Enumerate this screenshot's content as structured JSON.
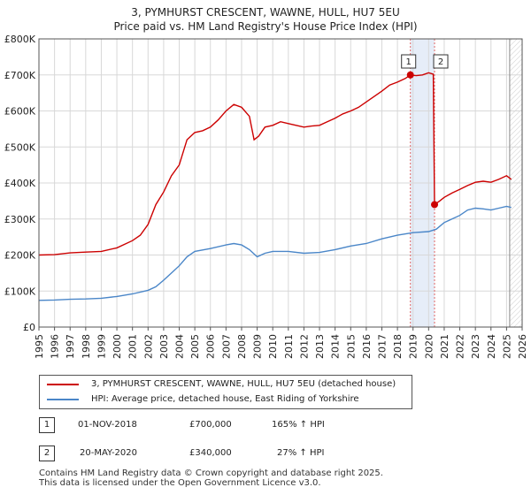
{
  "chart_data": {
    "type": "line",
    "title": "3, PYMHURST CRESCENT, WAWNE, HULL, HU7 5EU",
    "subtitle": "Price paid vs. HM Land Registry's House Price Index (HPI)",
    "xlabel": "",
    "ylabel": "",
    "xlim": [
      1995,
      2026
    ],
    "ylim": [
      0,
      800000
    ],
    "y_ticks": [
      {
        "value": 0,
        "label": "£0"
      },
      {
        "value": 100000,
        "label": "£100K"
      },
      {
        "value": 200000,
        "label": "£200K"
      },
      {
        "value": 300000,
        "label": "£300K"
      },
      {
        "value": 400000,
        "label": "£400K"
      },
      {
        "value": 500000,
        "label": "£500K"
      },
      {
        "value": 600000,
        "label": "£600K"
      },
      {
        "value": 700000,
        "label": "£700K"
      },
      {
        "value": 800000,
        "label": "£800K"
      }
    ],
    "x_ticks": [
      "1995",
      "1996",
      "1997",
      "1998",
      "1999",
      "2000",
      "2001",
      "2002",
      "2003",
      "2004",
      "2005",
      "2006",
      "2007",
      "2008",
      "2009",
      "2010",
      "2011",
      "2012",
      "2013",
      "2014",
      "2015",
      "2016",
      "2017",
      "2018",
      "2019",
      "2020",
      "2021",
      "2022",
      "2023",
      "2024",
      "2025",
      "2026"
    ],
    "grid": true,
    "highlight_band": [
      2018.83,
      2020.38
    ],
    "projection_start": 2025.2,
    "series": [
      {
        "name": "3, PYMHURST CRESCENT, WAWNE, HULL, HU7 5EU (detached house)",
        "color": "#cc0000",
        "x": [
          1995,
          1996,
          1997,
          1998,
          1999,
          2000,
          2001,
          2001.5,
          2002,
          2002.5,
          2003,
          2003.5,
          2004,
          2004.5,
          2005,
          2005.5,
          2006,
          2006.5,
          2007,
          2007.5,
          2008,
          2008.5,
          2008.8,
          2009.1,
          2009.5,
          2010,
          2010.5,
          2011,
          2011.5,
          2012,
          2012.5,
          2013,
          2013.5,
          2014,
          2014.5,
          2015,
          2015.5,
          2016,
          2016.5,
          2017,
          2017.5,
          2018,
          2018.5,
          2018.83,
          2019.2,
          2019.6,
          2020.0,
          2020.3,
          2020.38,
          2020.7,
          2021.0,
          2021.5,
          2022.0,
          2022.5,
          2023.0,
          2023.5,
          2024.0,
          2024.5,
          2025.0,
          2025.3
        ],
        "y": [
          200000,
          201000,
          206000,
          208000,
          210000,
          220000,
          240000,
          255000,
          285000,
          340000,
          375000,
          420000,
          450000,
          520000,
          540000,
          545000,
          555000,
          575000,
          600000,
          618000,
          610000,
          585000,
          520000,
          530000,
          555000,
          560000,
          570000,
          565000,
          560000,
          555000,
          558000,
          560000,
          570000,
          580000,
          592000,
          600000,
          610000,
          625000,
          640000,
          655000,
          672000,
          680000,
          690000,
          700000,
          698000,
          700000,
          706000,
          702000,
          340000,
          350000,
          360000,
          372000,
          382000,
          393000,
          402000,
          405000,
          402000,
          410000,
          420000,
          410000
        ]
      },
      {
        "name": "HPI: Average price, detached house, East Riding of Yorkshire",
        "color": "#4a86c8",
        "x": [
          1995,
          1996,
          1997,
          1998,
          1999,
          2000,
          2001,
          2002,
          2002.5,
          2003,
          2003.5,
          2004,
          2004.5,
          2005,
          2006,
          2007,
          2007.5,
          2008,
          2008.5,
          2009,
          2009.5,
          2010,
          2011,
          2012,
          2013,
          2014,
          2015,
          2016,
          2017,
          2018,
          2019,
          2020,
          2020.5,
          2021,
          2021.5,
          2022,
          2022.5,
          2023,
          2023.5,
          2024,
          2024.5,
          2025,
          2025.3
        ],
        "y": [
          74000,
          75000,
          77000,
          78000,
          80000,
          85000,
          92000,
          102000,
          112000,
          130000,
          150000,
          170000,
          195000,
          210000,
          218000,
          228000,
          232000,
          228000,
          215000,
          195000,
          205000,
          210000,
          210000,
          205000,
          207000,
          215000,
          225000,
          232000,
          245000,
          255000,
          262000,
          265000,
          272000,
          290000,
          300000,
          310000,
          325000,
          330000,
          328000,
          325000,
          330000,
          335000,
          332000
        ]
      }
    ],
    "sales": [
      {
        "id": "1",
        "x": 2018.83,
        "y": 700000
      },
      {
        "id": "2",
        "x": 2020.38,
        "y": 340000
      }
    ]
  },
  "legend": {
    "items": [
      {
        "label": "3, PYMHURST CRESCENT, WAWNE, HULL, HU7 5EU (detached house)",
        "color": "#cc0000"
      },
      {
        "label": "HPI: Average price, detached house, East Riding of Yorkshire",
        "color": "#4a86c8"
      }
    ]
  },
  "transactions": [
    {
      "id": "1",
      "date": "01-NOV-2018",
      "price": "£700,000",
      "hpi": "165% ↑ HPI"
    },
    {
      "id": "2",
      "date": "20-MAY-2020",
      "price": "£340,000",
      "hpi": "27% ↑ HPI"
    }
  ],
  "footer": {
    "line1": "Contains HM Land Registry data © Crown copyright and database right 2025.",
    "line2": "This data is licensed under the Open Government Licence v3.0."
  }
}
